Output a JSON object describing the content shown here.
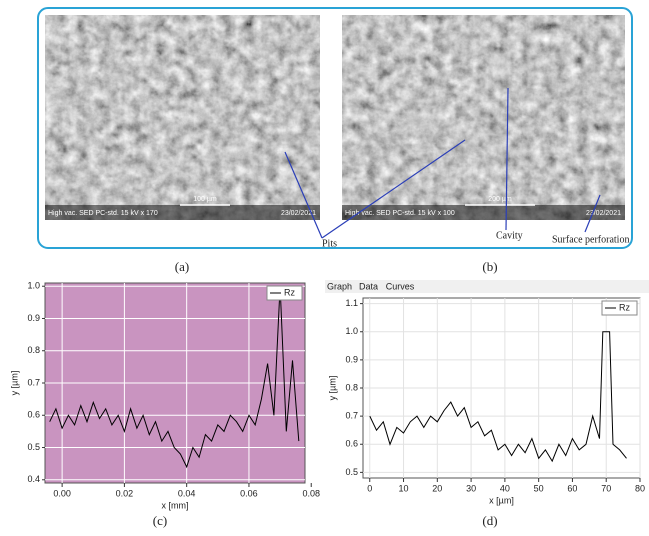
{
  "figure": {
    "labels": [
      "(a)",
      "(b)",
      "(c)",
      "(d)"
    ],
    "images": [
      {
        "info": "High vac.   SED   PC-std.   15 kV   x 170",
        "scale": "100 µm",
        "date": "23/02/2021"
      },
      {
        "info": "High vac.   SED   PC-std.   15 kV   x 100",
        "scale": "200 µm",
        "date": "23/02/2021"
      }
    ],
    "annotations": [
      "Pits",
      "Cavity",
      "Surface perforation"
    ]
  },
  "chart_data": [
    {
      "type": "line",
      "x_label": "x [mm]",
      "y_label": "y [µm]",
      "background": "#c994c0",
      "grid": true,
      "grid_color": "#ffffff",
      "legend": "upper right",
      "xlim": [
        -0.0055,
        0.078
      ],
      "ylim": [
        0.39,
        1.01
      ],
      "xticks": [
        {
          "value": 0,
          "label": "0.00"
        },
        0.02,
        0.04,
        0.06,
        {
          "value": 0.08,
          "label": "0.08"
        }
      ],
      "yticks": [
        0.4,
        0.5,
        0.6,
        0.7,
        0.8,
        0.9,
        {
          "value": 1,
          "label": "1.0"
        }
      ],
      "x": [
        -0.004,
        -0.002,
        0,
        0.002,
        0.004,
        0.006,
        0.008,
        0.01,
        0.012,
        0.014,
        0.016,
        0.018,
        0.02,
        0.022,
        0.024,
        0.026,
        0.028,
        0.03,
        0.032,
        0.034,
        0.036,
        0.038,
        0.04,
        0.042,
        0.044,
        0.046,
        0.048,
        0.05,
        0.052,
        0.054,
        0.056,
        0.058,
        0.06,
        0.062,
        0.064,
        0.066,
        0.068,
        0.07,
        0.072,
        0.074,
        0.076
      ],
      "series": [
        {
          "name": "Rz",
          "color": "#000000",
          "values": [
            0.58,
            0.62,
            0.56,
            0.6,
            0.57,
            0.63,
            0.58,
            0.64,
            0.59,
            0.62,
            0.57,
            0.6,
            0.55,
            0.62,
            0.56,
            0.6,
            0.54,
            0.58,
            0.52,
            0.55,
            0.5,
            0.48,
            0.44,
            0.5,
            0.47,
            0.54,
            0.52,
            0.57,
            0.55,
            0.6,
            0.58,
            0.55,
            0.6,
            0.57,
            0.65,
            0.76,
            0.6,
            1.0,
            0.55,
            0.77,
            0.52
          ]
        }
      ]
    },
    {
      "type": "line",
      "x_label": "x [µm]",
      "y_label": "y [µm]",
      "background": "#ffffff",
      "grid": true,
      "grid_color": "#e2e2e2",
      "legend": "upper right",
      "tabs": [
        "Graph",
        "Data",
        "Curves"
      ],
      "xlim": [
        -2,
        80
      ],
      "ylim": [
        0.48,
        1.12
      ],
      "xticks": [
        0,
        10,
        20,
        30,
        40,
        50,
        60,
        70,
        80
      ],
      "yticks": [
        0.5,
        0.6,
        0.7,
        0.8,
        0.9,
        {
          "value": 1,
          "label": "1.0"
        },
        1.1
      ],
      "x": [
        0,
        2,
        4,
        6,
        8,
        10,
        12,
        14,
        16,
        18,
        20,
        22,
        24,
        26,
        28,
        30,
        32,
        34,
        36,
        38,
        40,
        42,
        44,
        46,
        48,
        50,
        52,
        54,
        56,
        58,
        60,
        62,
        64,
        66,
        68,
        69,
        71,
        72,
        74,
        76
      ],
      "series": [
        {
          "name": "Rz",
          "color": "#000000",
          "values": [
            0.7,
            0.65,
            0.68,
            0.6,
            0.66,
            0.64,
            0.68,
            0.7,
            0.66,
            0.7,
            0.68,
            0.72,
            0.75,
            0.7,
            0.73,
            0.66,
            0.68,
            0.63,
            0.65,
            0.58,
            0.6,
            0.56,
            0.6,
            0.57,
            0.62,
            0.55,
            0.58,
            0.54,
            0.6,
            0.56,
            0.62,
            0.58,
            0.6,
            0.7,
            0.62,
            1.0,
            1.0,
            0.6,
            0.58,
            0.55
          ]
        }
      ]
    }
  ]
}
